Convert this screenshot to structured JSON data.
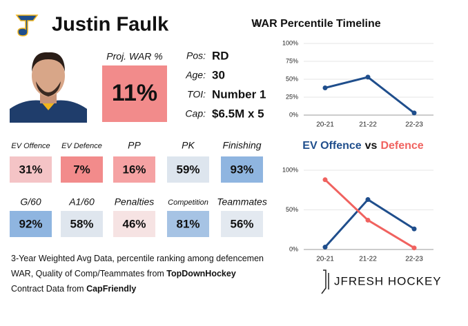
{
  "header": {
    "name": "Justin Faulk"
  },
  "projection": {
    "label": "Proj. WAR %",
    "value": "11%",
    "color": "#f28b8b"
  },
  "info": [
    {
      "label": "Pos:",
      "value": "RD"
    },
    {
      "label": "Age:",
      "value": "30"
    },
    {
      "label": "TOI:",
      "value": "Number 1"
    },
    {
      "label": "Cap:",
      "value": "$6.5M x 5"
    }
  ],
  "tiles": [
    [
      {
        "label": "EV Offence",
        "value": "31%",
        "color": "#f4c4c6"
      },
      {
        "label": "EV Defence",
        "value": "7%",
        "color": "#f28b8b"
      },
      {
        "label": "PP",
        "value": "16%",
        "color": "#f5a2a3"
      },
      {
        "label": "PK",
        "value": "59%",
        "color": "#dde5ee"
      },
      {
        "label": "Finishing",
        "value": "93%",
        "color": "#8fb5e0"
      }
    ],
    [
      {
        "label": "G/60",
        "value": "92%",
        "color": "#8fb5e0"
      },
      {
        "label": "A1/60",
        "value": "58%",
        "color": "#dfe6ee"
      },
      {
        "label": "Penalties",
        "value": "46%",
        "color": "#f6e3e3"
      },
      {
        "label": "Competition",
        "value": "81%",
        "color": "#a6c3e4"
      },
      {
        "label": "Teammates",
        "value": "56%",
        "color": "#e3e9f0"
      }
    ]
  ],
  "notes": [
    {
      "text": "3-Year Weighted Avg Data, percentile ranking among defencemen"
    },
    {
      "text": "WAR, Quality of Comp/Teammates from ",
      "source": "TopDownHockey"
    },
    {
      "text": "Contract Data from ",
      "source": "CapFriendly"
    }
  ],
  "brand": "JFRESH HOCKEY",
  "chart_data": [
    {
      "type": "line",
      "title": "WAR Percentile Timeline",
      "categories": [
        "20-21",
        "21-22",
        "22-23"
      ],
      "series": [
        {
          "name": "WAR",
          "color": "#1f4e8c",
          "values": [
            38,
            53,
            3
          ]
        }
      ],
      "ylim": [
        0,
        100
      ],
      "yticks": [
        {
          "value": 0,
          "label": "0%"
        },
        {
          "value": 25,
          "label": "25%"
        },
        {
          "value": 50,
          "label": "50%"
        },
        {
          "value": 75,
          "label": "75%"
        },
        {
          "value": 100,
          "label": "100%"
        }
      ],
      "grid": true
    },
    {
      "type": "line",
      "title_connector": "vs",
      "categories": [
        "20-21",
        "21-22",
        "22-23"
      ],
      "series": [
        {
          "name": "EV Offence",
          "color": "#1f4e8c",
          "values": [
            3,
            63,
            26
          ]
        },
        {
          "name": "Defence",
          "color": "#f0625f",
          "values": [
            88,
            37,
            2
          ]
        }
      ],
      "ylim": [
        0,
        100
      ],
      "yticks": [
        {
          "value": 0,
          "label": "0%"
        },
        {
          "value": 50,
          "label": "50%"
        },
        {
          "value": 100,
          "label": "100%"
        }
      ],
      "grid": true
    }
  ]
}
